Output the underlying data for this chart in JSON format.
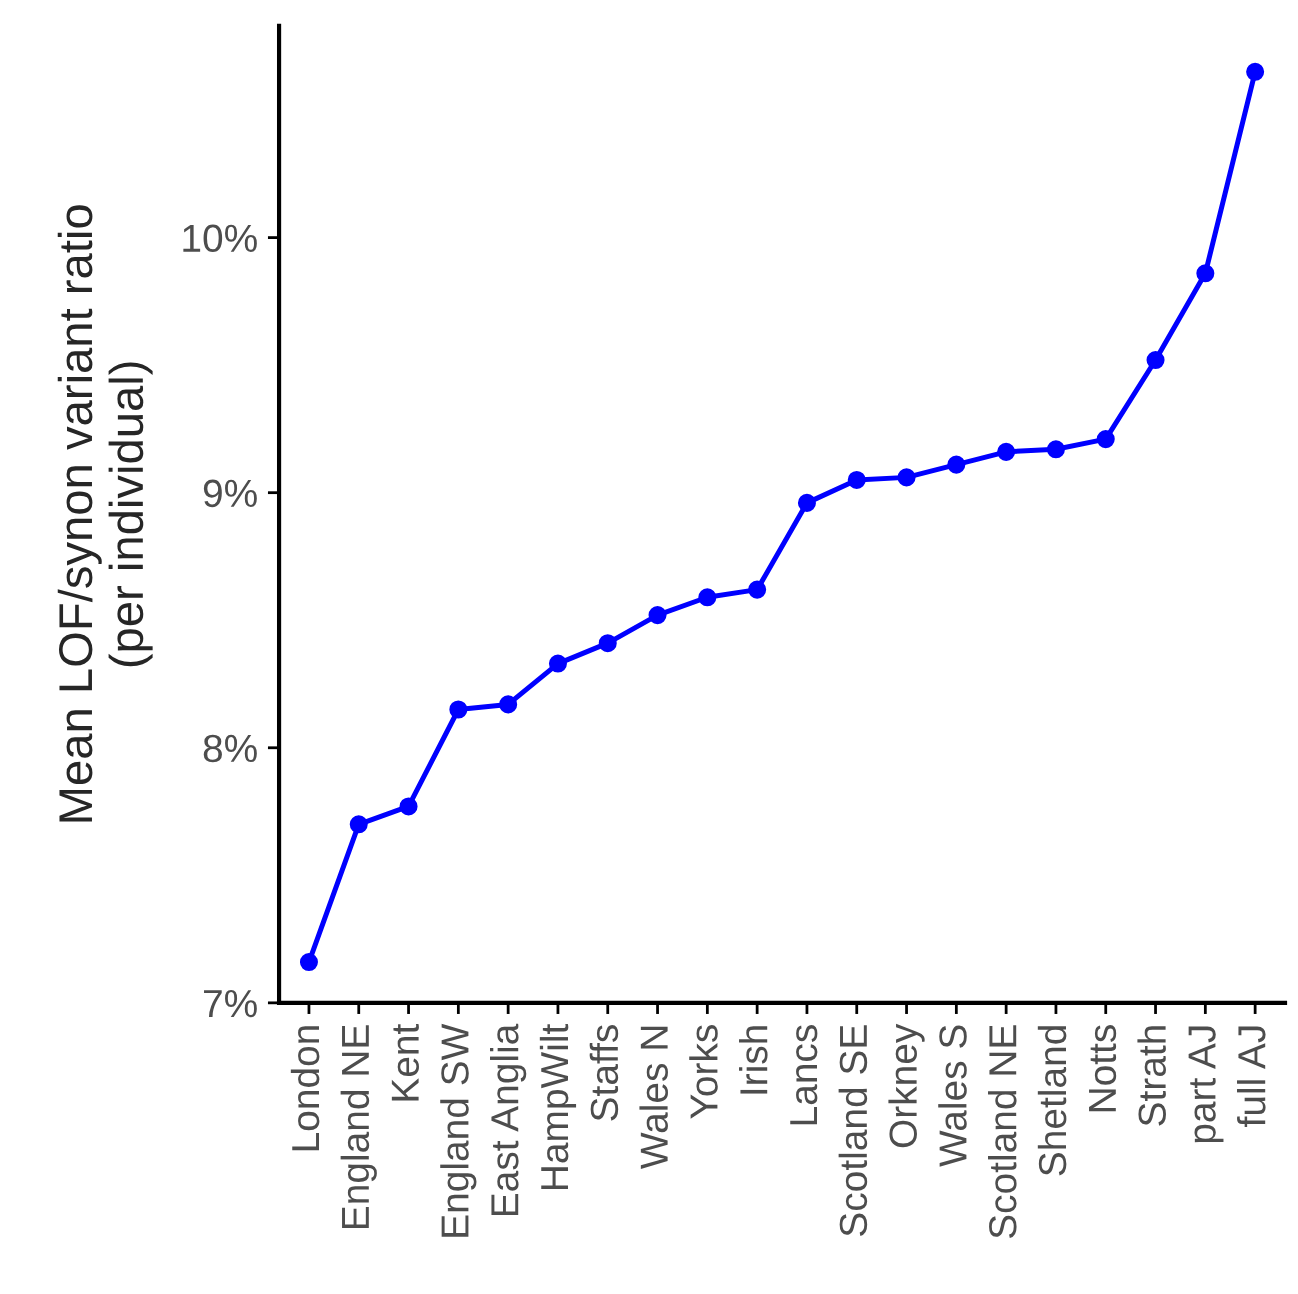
{
  "chart_data": {
    "type": "line",
    "ylabel": "Mean LOF/synon variant ratio\n(per individual)",
    "categories": [
      "London",
      "England NE",
      "Kent",
      "England SW",
      "East Anglia",
      "HampWilt",
      "Staffs",
      "Wales N",
      "Yorks",
      "Irish",
      "Lancs",
      "Scotland SE",
      "Orkney",
      "Wales S",
      "Scotland NE",
      "Shetland",
      "Notts",
      "Strath",
      "part AJ",
      "full AJ"
    ],
    "series": [
      {
        "color": "#0000ff",
        "values": [
          7.16,
          7.7,
          7.77,
          8.15,
          8.17,
          8.33,
          8.41,
          8.52,
          8.59,
          8.62,
          8.96,
          9.05,
          9.06,
          9.11,
          9.16,
          9.17,
          9.21,
          9.52,
          9.86,
          10.65
        ]
      }
    ],
    "ylim": [
      7,
      10.83
    ],
    "yticks": [
      {
        "value": 7,
        "label": "7%"
      },
      {
        "value": 8,
        "label": "8%"
      },
      {
        "value": 9,
        "label": "9%"
      },
      {
        "value": 10,
        "label": "10%"
      }
    ],
    "marker": "circle",
    "line_style": "solid",
    "grid": false,
    "legend": false
  }
}
